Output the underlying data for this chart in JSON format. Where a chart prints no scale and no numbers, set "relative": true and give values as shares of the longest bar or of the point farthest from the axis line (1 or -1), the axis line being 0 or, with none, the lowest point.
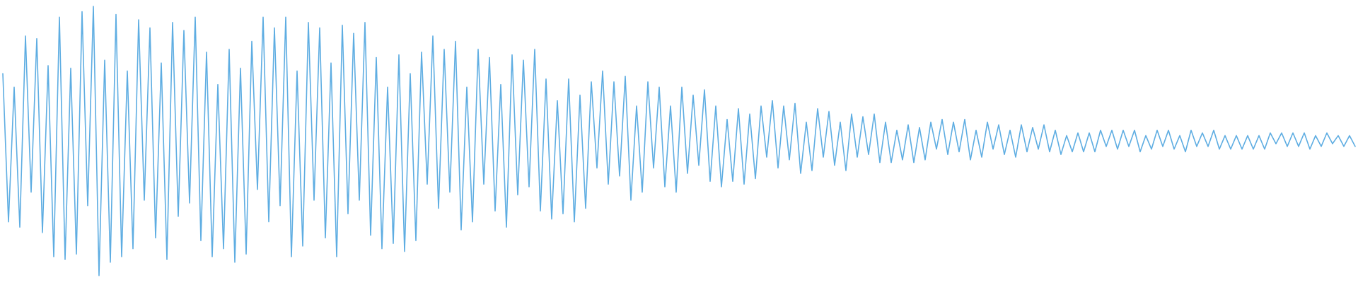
{
  "chart_data": {
    "type": "line",
    "relative": true,
    "color": "#5eade2",
    "categories": [
      null,
      null,
      null,
      null,
      null,
      null,
      null,
      null,
      null,
      null,
      null,
      null,
      null,
      null,
      null,
      null,
      null,
      null,
      null,
      null,
      null,
      null,
      null,
      null,
      null,
      null,
      null,
      null,
      null,
      null,
      null,
      null,
      null,
      null,
      null,
      null,
      null,
      null,
      null,
      null,
      null,
      null,
      null,
      null,
      null,
      null,
      null,
      null,
      null,
      null,
      null,
      null,
      null,
      null,
      null,
      null,
      null,
      null,
      null,
      null,
      null,
      null,
      null,
      null,
      null,
      null,
      null,
      null,
      null,
      null,
      null,
      null,
      null,
      null,
      null,
      null,
      null,
      null,
      null,
      null,
      null,
      null,
      null,
      null,
      null,
      null,
      null,
      null,
      null,
      null,
      null,
      null,
      null,
      null,
      null,
      null,
      null,
      null,
      null,
      null,
      null,
      null,
      null,
      null,
      null,
      null,
      null,
      null,
      null,
      null,
      null,
      null,
      null,
      null,
      null,
      null,
      null,
      null,
      null,
      null,
      null,
      null,
      null,
      null,
      null,
      null,
      null,
      null,
      null,
      null,
      null,
      null,
      null,
      null,
      null,
      null,
      null,
      null,
      null,
      null,
      null,
      null,
      null,
      null,
      null,
      null,
      null,
      null,
      null,
      null,
      null,
      null,
      null,
      null,
      null,
      null,
      null,
      null,
      null,
      null,
      null,
      null,
      null,
      null,
      null,
      null,
      null,
      null,
      null,
      null,
      null,
      null,
      null,
      null,
      null,
      null,
      null,
      null,
      null,
      null,
      null,
      null,
      null,
      null,
      null,
      null,
      null,
      null,
      null,
      null,
      null,
      null,
      null,
      null,
      null,
      null,
      null,
      null,
      null,
      null,
      null,
      null,
      null,
      null,
      null,
      null,
      null,
      null,
      null,
      null,
      null,
      null,
      null,
      null,
      null,
      null,
      null,
      null,
      null,
      null,
      null,
      null,
      null,
      null,
      null,
      null,
      null,
      null,
      null,
      null,
      null,
      null,
      null,
      null,
      null,
      null,
      null,
      null,
      null,
      null
    ],
    "values": [
      0.75,
      0.2,
      0.7,
      0.18,
      0.89,
      0.31,
      0.88,
      0.16,
      0.78,
      0.07,
      0.96,
      0.06,
      0.77,
      0.08,
      0.98,
      0.26,
      1.0,
      0.0,
      0.8,
      0.05,
      0.97,
      0.07,
      0.76,
      0.1,
      0.95,
      0.28,
      0.92,
      0.14,
      0.79,
      0.06,
      0.94,
      0.22,
      0.91,
      0.27,
      0.96,
      0.13,
      0.83,
      0.07,
      0.71,
      0.1,
      0.84,
      0.05,
      0.77,
      0.08,
      0.87,
      0.32,
      0.96,
      0.2,
      0.92,
      0.26,
      0.96,
      0.07,
      0.76,
      0.11,
      0.94,
      0.28,
      0.92,
      0.14,
      0.79,
      0.07,
      0.93,
      0.23,
      0.9,
      0.28,
      0.94,
      0.15,
      0.81,
      0.1,
      0.7,
      0.12,
      0.82,
      0.09,
      0.75,
      0.13,
      0.83,
      0.34,
      0.89,
      0.25,
      0.84,
      0.31,
      0.87,
      0.17,
      0.7,
      0.2,
      0.84,
      0.34,
      0.81,
      0.24,
      0.71,
      0.18,
      0.82,
      0.3,
      0.8,
      0.33,
      0.84,
      0.24,
      0.73,
      0.21,
      0.65,
      0.23,
      0.73,
      0.2,
      0.67,
      0.25,
      0.72,
      0.4,
      0.76,
      0.34,
      0.72,
      0.37,
      0.74,
      0.28,
      0.63,
      0.31,
      0.72,
      0.4,
      0.7,
      0.33,
      0.63,
      0.31,
      0.7,
      0.38,
      0.67,
      0.41,
      0.69,
      0.35,
      0.63,
      0.33,
      0.58,
      0.35,
      0.62,
      0.34,
      0.6,
      0.36,
      0.63,
      0.44,
      0.65,
      0.4,
      0.63,
      0.43,
      0.64,
      0.38,
      0.57,
      0.39,
      0.62,
      0.44,
      0.61,
      0.41,
      0.57,
      0.39,
      0.6,
      0.44,
      0.59,
      0.45,
      0.6,
      0.42,
      0.57,
      0.42,
      0.54,
      0.43,
      0.56,
      0.42,
      0.55,
      0.43,
      0.57,
      0.47,
      0.58,
      0.45,
      0.57,
      0.46,
      0.58,
      0.43,
      0.54,
      0.44,
      0.57,
      0.47,
      0.56,
      0.45,
      0.54,
      0.44,
      0.56,
      0.46,
      0.55,
      0.47,
      0.56,
      0.46,
      0.54,
      0.45,
      0.52,
      0.46,
      0.53,
      0.46,
      0.53,
      0.46,
      0.54,
      0.48,
      0.54,
      0.47,
      0.54,
      0.48,
      0.54,
      0.46,
      0.52,
      0.47,
      0.54,
      0.48,
      0.54,
      0.47,
      0.52,
      0.46,
      0.54,
      0.48,
      0.53,
      0.48,
      0.54,
      0.47,
      0.52,
      0.47,
      0.52,
      0.47,
      0.52,
      0.47,
      0.52,
      0.47,
      0.53,
      0.49,
      0.53,
      0.48,
      0.53,
      0.48,
      0.53,
      0.47,
      0.52,
      0.48,
      0.53,
      0.49,
      0.52,
      0.48,
      0.52,
      0.48
    ]
  }
}
